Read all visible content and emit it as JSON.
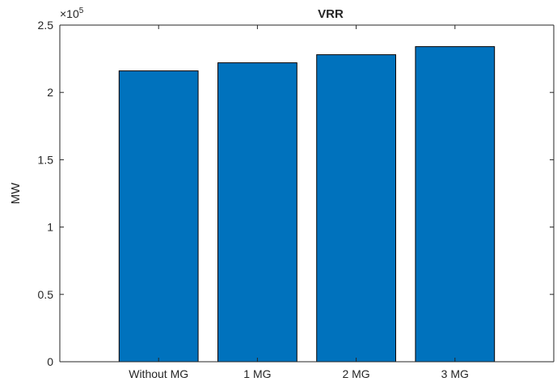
{
  "chart_data": {
    "type": "bar",
    "title": "VRR",
    "xlabel": "",
    "ylabel": "MW",
    "y_exponent_label": "×10",
    "y_exponent_power": "5",
    "categories": [
      "Without MG",
      "1 MG",
      "2 MG",
      "3 MG"
    ],
    "values": [
      216000,
      222000,
      228000,
      234000
    ],
    "ylim": [
      0,
      250000
    ],
    "y_ticks": [
      0,
      50000,
      100000,
      150000,
      200000,
      250000
    ],
    "y_tick_labels": [
      "0",
      "0.5",
      "1",
      "1.5",
      "2",
      "2.5"
    ],
    "bar_color": "#0072BD",
    "grid": false,
    "box": true
  }
}
